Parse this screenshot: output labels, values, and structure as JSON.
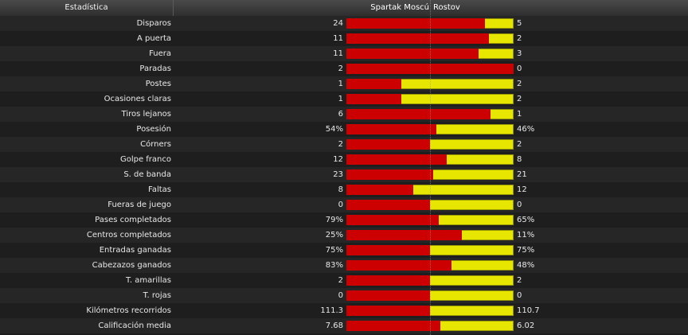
{
  "header": {
    "stat_col": "Estadística",
    "home_team": "Spartak Moscú",
    "away_team": "Rostov"
  },
  "colors": {
    "home": "#cc0000",
    "away": "#e6e600"
  },
  "rows": [
    {
      "label": "Disparos",
      "home": "24",
      "away": "5",
      "home_share": 0.83
    },
    {
      "label": "A puerta",
      "home": "11",
      "away": "2",
      "home_share": 0.85
    },
    {
      "label": "Fuera",
      "home": "11",
      "away": "3",
      "home_share": 0.79
    },
    {
      "label": "Paradas",
      "home": "2",
      "away": "0",
      "home_share": 1.0
    },
    {
      "label": "Postes",
      "home": "1",
      "away": "2",
      "home_share": 0.33
    },
    {
      "label": "Ocasiones claras",
      "home": "1",
      "away": "2",
      "home_share": 0.33
    },
    {
      "label": "Tiros lejanos",
      "home": "6",
      "away": "1",
      "home_share": 0.86
    },
    {
      "label": "Posesión",
      "home": "54%",
      "away": "46%",
      "home_share": 0.54
    },
    {
      "label": "Córners",
      "home": "2",
      "away": "2",
      "home_share": 0.5
    },
    {
      "label": "Golpe franco",
      "home": "12",
      "away": "8",
      "home_share": 0.6
    },
    {
      "label": "S. de banda",
      "home": "23",
      "away": "21",
      "home_share": 0.52
    },
    {
      "label": "Faltas",
      "home": "8",
      "away": "12",
      "home_share": 0.4
    },
    {
      "label": "Fueras de juego",
      "home": "0",
      "away": "0",
      "home_share": 0.5
    },
    {
      "label": "Pases completados",
      "home": "79%",
      "away": "65%",
      "home_share": 0.55
    },
    {
      "label": "Centros completados",
      "home": "25%",
      "away": "11%",
      "home_share": 0.69
    },
    {
      "label": "Entradas ganadas",
      "home": "75%",
      "away": "75%",
      "home_share": 0.5
    },
    {
      "label": "Cabezazos ganados",
      "home": "83%",
      "away": "48%",
      "home_share": 0.63
    },
    {
      "label": "T. amarillas",
      "home": "2",
      "away": "2",
      "home_share": 0.5
    },
    {
      "label": "T. rojas",
      "home": "0",
      "away": "0",
      "home_share": 0.5
    },
    {
      "label": "Kilómetros recorridos",
      "home": "111.3",
      "away": "110.7",
      "home_share": 0.5
    },
    {
      "label": "Calificación media",
      "home": "7.68",
      "away": "6.02",
      "home_share": 0.56
    }
  ]
}
